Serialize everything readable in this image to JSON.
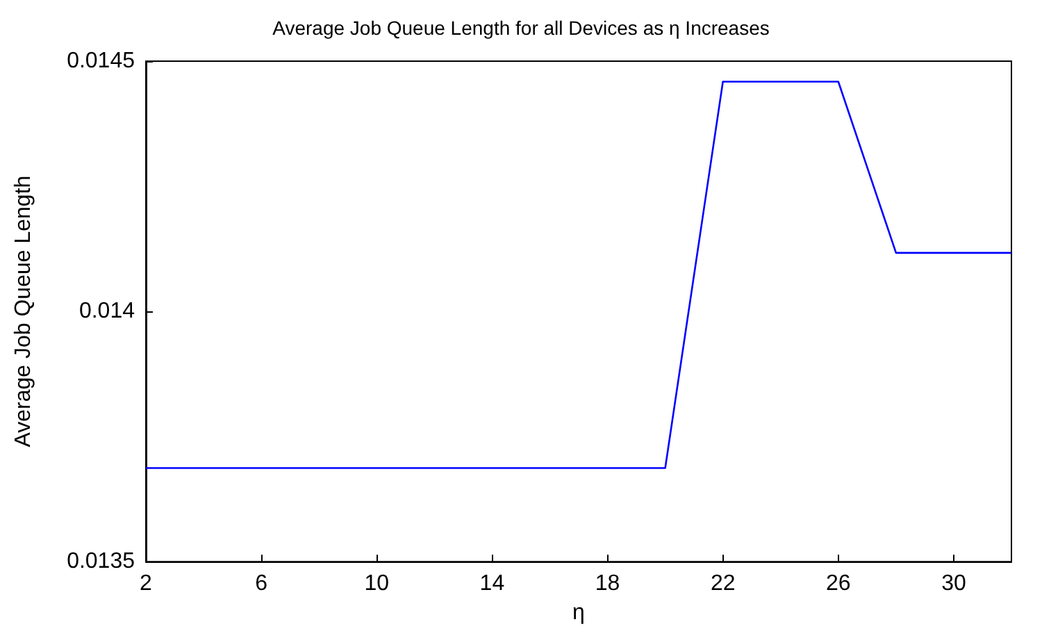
{
  "chart_data": {
    "type": "line",
    "title": "Average Job Queue Length for all Devices as η Increases",
    "xlabel": "η",
    "ylabel": "Average Job Queue Length",
    "x": [
      2,
      4,
      6,
      8,
      10,
      12,
      14,
      16,
      18,
      20,
      22,
      24,
      26,
      28,
      30,
      32
    ],
    "series": [
      {
        "color": "#0000ff",
        "values": [
          0.013687,
          0.013687,
          0.013687,
          0.013687,
          0.013687,
          0.013687,
          0.013687,
          0.013687,
          0.013687,
          0.013687,
          0.014459,
          0.014459,
          0.014459,
          0.014117,
          0.014117,
          0.014117
        ]
      }
    ],
    "xlim": [
      2,
      32
    ],
    "xticks": [
      2,
      6,
      10,
      14,
      18,
      22,
      26,
      30
    ],
    "ylim": [
      0.0135,
      0.0145
    ],
    "yticks": [
      0.0135,
      0.014,
      0.0145
    ],
    "grid": false,
    "marker": "none",
    "line_style": "solid"
  }
}
